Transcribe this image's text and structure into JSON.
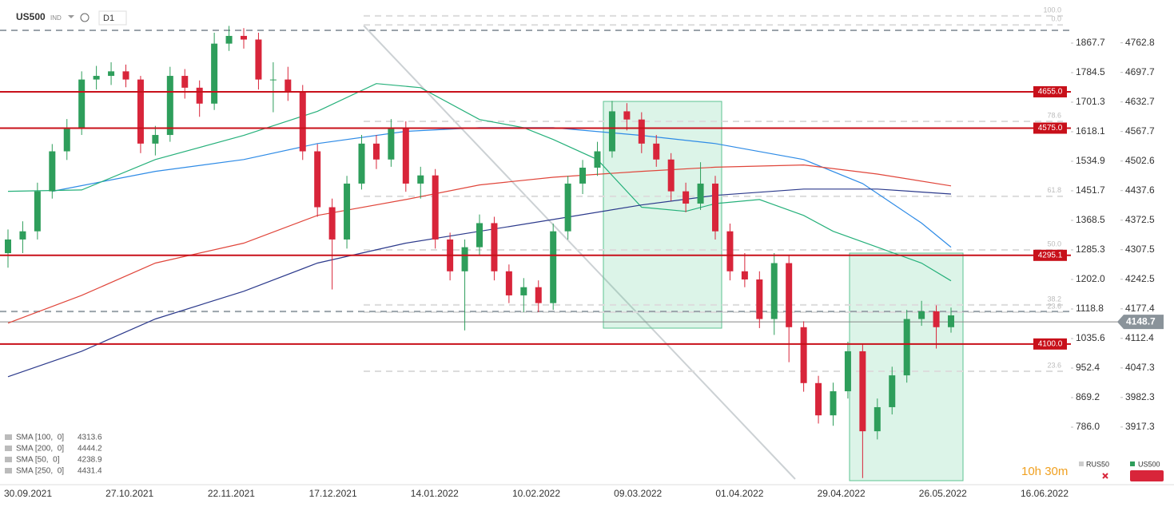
{
  "header": {
    "symbol": "US500",
    "kind": "IND",
    "interval": "D1"
  },
  "chart_data": {
    "type": "candlestick",
    "up_color": "#2e9e5b",
    "down_color": "#d8253a",
    "ylim": [
      628.6,
      1989.1
    ],
    "yticks": [
      1867.7,
      1784.5,
      1701.3,
      1618.1,
      1534.9,
      1451.7,
      1368.5,
      1285.3,
      {
        "value": 1202,
        "label": "1202.0"
      },
      1118.8,
      1035.6,
      952.4,
      869.2,
      {
        "value": 786,
        "label": "786.0"
      }
    ],
    "y2lim": [
      3794,
      4857
    ],
    "y2ticks": [
      4762.8,
      4697.7,
      4632.7,
      4567.7,
      4502.6,
      4437.6,
      4372.5,
      4307.5,
      4242.5,
      4177.4,
      4112.4,
      4047.3,
      3982.3,
      3917.3
    ],
    "xticks": [
      "30.09.2021",
      "27.10.2021",
      "22.11.2021",
      "17.12.2021",
      "14.01.2022",
      "10.02.2022",
      "09.03.2022",
      "01.04.2022",
      "29.04.2022",
      "26.05.2022",
      "16.06.2022"
    ],
    "candles": [
      [
        4300,
        4352,
        4268,
        4330
      ],
      [
        4330,
        4370,
        4300,
        4348
      ],
      [
        4348,
        4455,
        4330,
        4436
      ],
      [
        4436,
        4540,
        4420,
        4524
      ],
      [
        4524,
        4595,
        4505,
        4576
      ],
      [
        4576,
        4700,
        4560,
        4682
      ],
      [
        4682,
        4712,
        4660,
        4690
      ],
      [
        4690,
        4720,
        4670,
        4700
      ],
      [
        4700,
        4715,
        4665,
        4682
      ],
      [
        4682,
        4690,
        4520,
        4541
      ],
      [
        4541,
        4580,
        4515,
        4560
      ],
      [
        4560,
        4710,
        4545,
        4690
      ],
      [
        4690,
        4705,
        4640,
        4664
      ],
      [
        4664,
        4680,
        4600,
        4629
      ],
      [
        4629,
        4785,
        4615,
        4761
      ],
      [
        4761,
        4800,
        4745,
        4778
      ],
      [
        4778,
        4795,
        4750,
        4770
      ],
      [
        4770,
        4785,
        4660,
        4682
      ],
      [
        4682,
        4720,
        4610,
        4682
      ],
      [
        4682,
        4710,
        4635,
        4655
      ],
      [
        4655,
        4670,
        4505,
        4524
      ],
      [
        4524,
        4540,
        4380,
        4401
      ],
      [
        4401,
        4420,
        4220,
        4330
      ],
      [
        4330,
        4470,
        4310,
        4453
      ],
      [
        4453,
        4560,
        4440,
        4541
      ],
      [
        4541,
        4560,
        4485,
        4506
      ],
      [
        4506,
        4595,
        4490,
        4576
      ],
      [
        4576,
        4590,
        4435,
        4453
      ],
      [
        4453,
        4490,
        4420,
        4471
      ],
      [
        4471,
        4485,
        4310,
        4330
      ],
      [
        4330,
        4345,
        4240,
        4260
      ],
      [
        4260,
        4330,
        4130,
        4313
      ],
      [
        4313,
        4385,
        4295,
        4366
      ],
      [
        4366,
        4380,
        4240,
        4260
      ],
      [
        4260,
        4275,
        4190,
        4207
      ],
      [
        4207,
        4245,
        4170,
        4225
      ],
      [
        4225,
        4240,
        4170,
        4190
      ],
      [
        4190,
        4365,
        4175,
        4348
      ],
      [
        4348,
        4470,
        4330,
        4453
      ],
      [
        4453,
        4505,
        4430,
        4488
      ],
      [
        4488,
        4545,
        4470,
        4524
      ],
      [
        4524,
        4635,
        4510,
        4612
      ],
      [
        4612,
        4630,
        4570,
        4594
      ],
      [
        4594,
        4610,
        4520,
        4541
      ],
      [
        4541,
        4560,
        4490,
        4506
      ],
      [
        4506,
        4520,
        4415,
        4436
      ],
      [
        4436,
        4455,
        4390,
        4409
      ],
      [
        4409,
        4500,
        4395,
        4453
      ],
      [
        4453,
        4470,
        4330,
        4348
      ],
      [
        4348,
        4365,
        4240,
        4260
      ],
      [
        4260,
        4300,
        4225,
        4242
      ],
      [
        4242,
        4260,
        4135,
        4155
      ],
      [
        4155,
        4300,
        4120,
        4278
      ],
      [
        4278,
        4295,
        4060,
        4137
      ],
      [
        4137,
        4150,
        3995,
        4014
      ],
      [
        4014,
        4030,
        3925,
        3943
      ],
      [
        3943,
        4015,
        3920,
        3996
      ],
      [
        3996,
        4105,
        3980,
        4084
      ],
      [
        4084,
        4100,
        3805,
        3908
      ],
      [
        3908,
        3980,
        3890,
        3961
      ],
      [
        3961,
        4050,
        3945,
        4031
      ],
      [
        4031,
        4175,
        4015,
        4155
      ],
      [
        4155,
        4195,
        4140,
        4172
      ],
      [
        4172,
        4185,
        4090,
        4137
      ],
      [
        4137,
        4180,
        4125,
        4163
      ]
    ],
    "series": [
      {
        "name": "SMA [100,  0]",
        "last": 4313.6,
        "color": "#2e8be6",
        "x": [
          3,
          10,
          16,
          21,
          27,
          32,
          37,
          43,
          48,
          54,
          58,
          62,
          64
        ],
        "values": [
          4436,
          4480,
          4506,
          4541,
          4568,
          4576,
          4576,
          4559,
          4541,
          4506,
          4453,
          4366,
          4313
        ]
      },
      {
        "name": "SMA [200,  0]",
        "last": 4444.2,
        "color": "#e0453a",
        "x": [
          0,
          5,
          10,
          16,
          21,
          27,
          32,
          37,
          43,
          48,
          54,
          59,
          64
        ],
        "values": [
          4146,
          4207,
          4278,
          4322,
          4383,
          4418,
          4450,
          4467,
          4480,
          4489,
          4494,
          4474,
          4448
        ]
      },
      {
        "name": "SMA [50,  0]",
        "last": 4238.9,
        "color": "#25b07a",
        "x": [
          0,
          5,
          10,
          16,
          21,
          25,
          28,
          32,
          35,
          37,
          40,
          43,
          46,
          48,
          51,
          54,
          56,
          59,
          62,
          64
        ],
        "values": [
          4436,
          4439,
          4506,
          4559,
          4612,
          4673,
          4664,
          4594,
          4576,
          4550,
          4506,
          4401,
          4392,
          4409,
          4418,
          4383,
          4348,
          4313,
          4278,
          4239
        ]
      },
      {
        "name": "SMA [250,  0]",
        "last": 4431.4,
        "color": "#2c3a8c",
        "x": [
          0,
          5,
          10,
          16,
          21,
          27,
          32,
          37,
          43,
          48,
          54,
          59,
          64
        ],
        "values": [
          4028,
          4084,
          4155,
          4216,
          4278,
          4322,
          4348,
          4374,
          4406,
          4427,
          4441,
          4441,
          4430
        ]
      }
    ],
    "levels": [
      {
        "value": 4655,
        "label": "4655.0"
      },
      {
        "value": 4575,
        "label": "4575.0"
      },
      4295.1,
      {
        "value": 4100,
        "label": "4100.0"
      }
    ],
    "current_price": 4148.7,
    "fib_levels": [
      {
        "label": "100.0",
        "price": 4822
      },
      {
        "label": "0.0",
        "price": 4802
      },
      {
        "label": "78.6",
        "price": 4590
      },
      {
        "label": "61.8",
        "price": 4425
      },
      {
        "label": "50.0",
        "price": 4307
      },
      {
        "label": "38.2",
        "price": 4186
      },
      {
        "label": "23.6",
        "price": 4170
      },
      {
        "label": "23.6",
        "price": 4040
      }
    ]
  },
  "footer": {
    "countdown": "10h 30m",
    "compare_symbol": "RUS50",
    "main_symbol": "US500"
  }
}
